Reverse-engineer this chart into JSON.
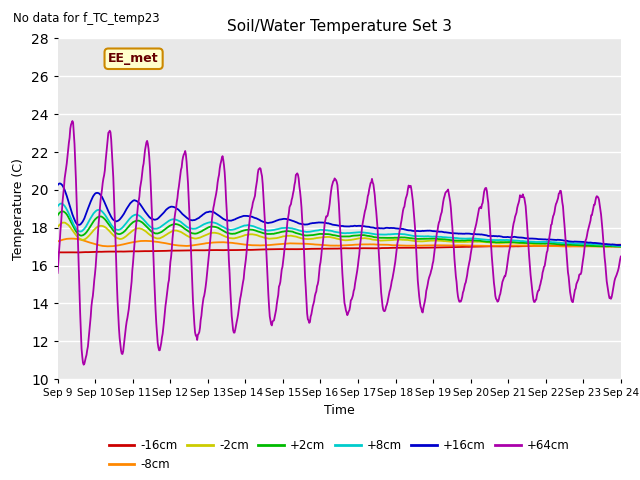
{
  "title": "Soil/Water Temperature Set 3",
  "subtitle": "No data for f_TC_temp23",
  "xlabel": "Time",
  "ylabel": "Temperature (C)",
  "annotation": "EE_met",
  "ylim": [
    10,
    28
  ],
  "xlim": [
    0,
    15
  ],
  "plot_bg_color": "#e8e8e8",
  "xtick_labels": [
    "Sep 9",
    "Sep 10",
    "Sep 11",
    "Sep 12",
    "Sep 13",
    "Sep 14",
    "Sep 15",
    "Sep 16",
    "Sep 17",
    "Sep 18",
    "Sep 19",
    "Sep 20",
    "Sep 21",
    "Sep 22",
    "Sep 23",
    "Sep 24"
  ],
  "series_colors": {
    "-16cm": "#cc0000",
    "-8cm": "#ff8800",
    "-2cm": "#cccc00",
    "+2cm": "#00bb00",
    "+8cm": "#00cccc",
    "+16cm": "#0000cc",
    "+64cm": "#aa00aa"
  }
}
